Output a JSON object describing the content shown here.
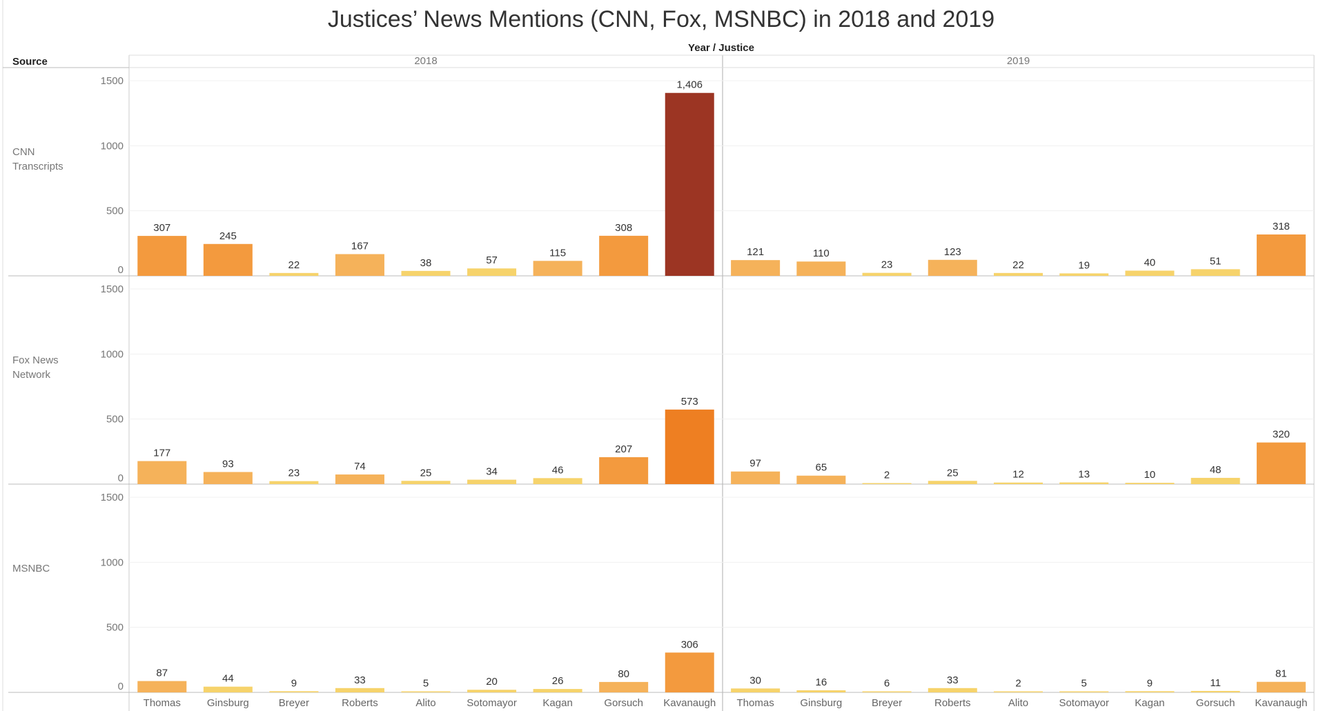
{
  "chart_data": {
    "type": "bar",
    "title": "Justices’ News Mentions (CNN, Fox, MSNBC) in 2018 and 2019",
    "column_header": "Year / Justice",
    "row_header": "Source",
    "years": [
      "2018",
      "2019"
    ],
    "categories": [
      "Thomas",
      "Ginsburg",
      "Breyer",
      "Roberts",
      "Alito",
      "Sotomayor",
      "Kagan",
      "Gorsuch",
      "Kavanaugh"
    ],
    "ylim": [
      0,
      1500
    ],
    "yticks": [
      "0",
      "500",
      "1000",
      "1500"
    ],
    "sources": [
      {
        "name": "CNN Transcripts",
        "name_lines": [
          "CNN",
          "Transcripts"
        ],
        "values": {
          "2018": [
            307,
            245,
            22,
            167,
            38,
            57,
            115,
            308,
            1406
          ],
          "2019": [
            121,
            110,
            23,
            123,
            22,
            19,
            40,
            51,
            318
          ]
        },
        "labels": {
          "2018": [
            "307",
            "245",
            "22",
            "167",
            "38",
            "57",
            "115",
            "308",
            "1,406"
          ],
          "2019": [
            "121",
            "110",
            "23",
            "123",
            "22",
            "19",
            "40",
            "51",
            "318"
          ]
        }
      },
      {
        "name": "Fox News Network",
        "name_lines": [
          "Fox News",
          "Network"
        ],
        "values": {
          "2018": [
            177,
            93,
            23,
            74,
            25,
            34,
            46,
            207,
            573
          ],
          "2019": [
            97,
            65,
            2,
            25,
            12,
            13,
            10,
            48,
            320
          ]
        },
        "labels": {
          "2018": [
            "177",
            "93",
            "23",
            "74",
            "25",
            "34",
            "46",
            "207",
            "573"
          ],
          "2019": [
            "97",
            "65",
            "2",
            "25",
            "12",
            "13",
            "10",
            "48",
            "320"
          ]
        }
      },
      {
        "name": "MSNBC",
        "name_lines": [
          "MSNBC"
        ],
        "values": {
          "2018": [
            87,
            44,
            9,
            33,
            5,
            20,
            26,
            80,
            306
          ],
          "2019": [
            30,
            16,
            6,
            33,
            2,
            5,
            9,
            11,
            81
          ]
        },
        "labels": {
          "2018": [
            "87",
            "44",
            "9",
            "33",
            "5",
            "20",
            "26",
            "80",
            "306"
          ],
          "2019": [
            "30",
            "16",
            "6",
            "33",
            "2",
            "5",
            "9",
            "11",
            "81"
          ]
        }
      }
    ],
    "color_scale": [
      "#f6d36b",
      "#f5b25a",
      "#f39a3e",
      "#ee7f22",
      "#9c3523"
    ]
  }
}
